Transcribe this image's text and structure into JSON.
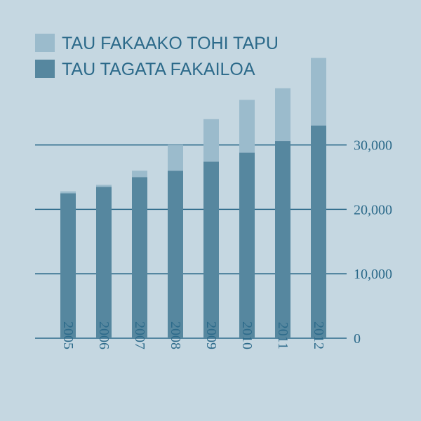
{
  "colors": {
    "background": "#c5d7e1",
    "primary": "#56879f",
    "secondary": "#9bbbcc",
    "gridline": "#2c6a8a",
    "text": "#2c6a8a"
  },
  "chart_data": {
    "type": "bar",
    "stacked": true,
    "categories": [
      "2005",
      "2006",
      "2007",
      "2008",
      "2009",
      "2010",
      "2011",
      "2012"
    ],
    "series": [
      {
        "name": "TAU TAGATA FAKAILOA",
        "color": "#56879f",
        "values": [
          22500,
          23500,
          25000,
          26000,
          27400,
          28800,
          30600,
          33000
        ]
      },
      {
        "name": "TAU FAKAAKO TOHI TAPU",
        "color": "#9bbbcc",
        "values": [
          300,
          300,
          1000,
          4000,
          6600,
          8200,
          8200,
          10500
        ]
      }
    ],
    "legend_order": [
      "TAU FAKAAKO TOHI TAPU",
      "TAU TAGATA FAKAILOA"
    ],
    "yticks": [
      0,
      10000,
      20000,
      30000
    ],
    "ytick_labels": [
      "0",
      "10,000",
      "20,000",
      "30,000"
    ],
    "ylim": [
      0,
      44000
    ],
    "yaxis_position": "right",
    "legend_position": "top-left",
    "grid": true
  }
}
